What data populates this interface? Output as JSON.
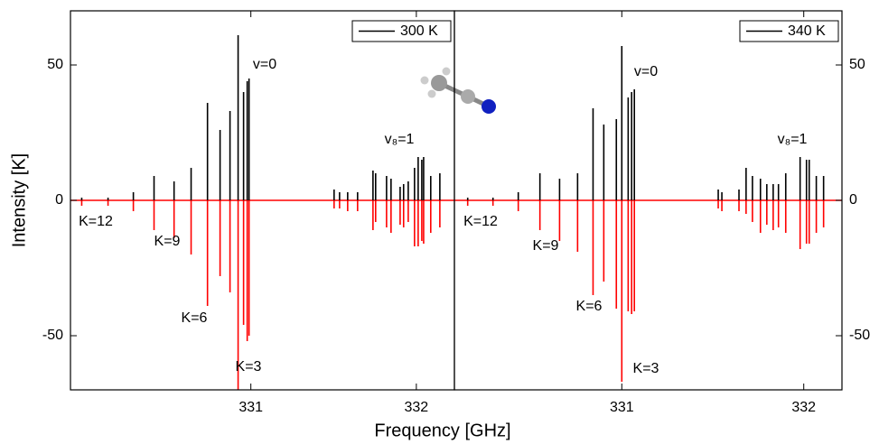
{
  "chart_data": [
    {
      "type": "stick",
      "ylabel": "Intensity [K]",
      "xlabel": "Frequency [GHz]",
      "xlim": [
        329.91,
        332.23
      ],
      "ylim": [
        -70,
        70
      ],
      "xticks": [
        331,
        332
      ],
      "yticks": [
        -50,
        0,
        50
      ],
      "x": [
        329.978,
        330.137,
        330.29,
        330.415,
        330.536,
        330.639,
        330.738,
        330.814,
        330.874,
        330.923,
        330.956,
        330.978,
        330.989,
        331.503,
        331.536,
        331.585,
        331.645,
        331.738,
        331.754,
        331.82,
        331.847,
        331.902,
        331.923,
        331.951,
        331.989,
        332.011,
        332.033,
        332.044,
        332.087,
        332.142
      ],
      "series": [
        {
          "name": "300 K",
          "color": "#000000",
          "values": [
            1,
            1,
            3,
            9,
            7,
            12,
            36,
            26,
            33,
            61,
            40,
            44,
            45,
            4,
            3,
            3,
            3,
            11,
            10,
            9,
            8,
            5,
            6,
            7,
            12,
            16,
            15,
            16,
            9,
            10
          ]
        },
        {
          "color": "#ff0000",
          "values": [
            -2,
            -2,
            -4,
            -11,
            -14,
            -20,
            -39,
            -28,
            -34,
            -70,
            -46,
            -52,
            -50,
            -3,
            -3,
            -4,
            -4,
            -11,
            -8,
            -10,
            -12,
            -9,
            -10,
            -8,
            -17,
            -17,
            -15,
            -16,
            -12,
            -10
          ]
        }
      ],
      "annotations": [
        "v=0",
        "v₈=1",
        "K=12",
        "K=9",
        "K=6",
        "K=3"
      ]
    },
    {
      "type": "stick",
      "xlim": [
        330.08,
        332.21
      ],
      "ylim": [
        -70,
        70
      ],
      "xticks": [
        331,
        332
      ],
      "yticks": [
        -50,
        0,
        50
      ],
      "x": [
        330.153,
        330.292,
        330.431,
        330.55,
        330.658,
        330.757,
        330.842,
        330.901,
        330.97,
        331.0,
        331.035,
        331.054,
        331.069,
        331.53,
        331.55,
        331.644,
        331.683,
        331.718,
        331.762,
        331.797,
        331.832,
        331.861,
        331.901,
        331.98,
        332.015,
        332.03,
        332.069,
        332.109
      ],
      "series": [
        {
          "name": "340 K",
          "color": "#000000",
          "values": [
            1,
            1,
            3,
            10,
            8,
            10,
            34,
            28,
            30,
            57,
            38,
            40,
            41,
            4,
            3,
            4,
            12,
            9,
            8,
            6,
            6,
            6,
            10,
            16,
            15,
            15,
            9,
            9
          ]
        },
        {
          "color": "#ff0000",
          "values": [
            -2,
            -2,
            -4,
            -11,
            -15,
            -19,
            -35,
            -30,
            -40,
            -67,
            -41,
            -42,
            -41,
            -3,
            -4,
            -4,
            -5,
            -8,
            -12,
            -9,
            -11,
            -10,
            -12,
            -18,
            -16,
            -16,
            -12,
            -10
          ]
        }
      ],
      "annotations": [
        "v=0",
        "v₈=1",
        "K=12",
        "K=9",
        "K=6",
        "K=3"
      ]
    }
  ]
}
